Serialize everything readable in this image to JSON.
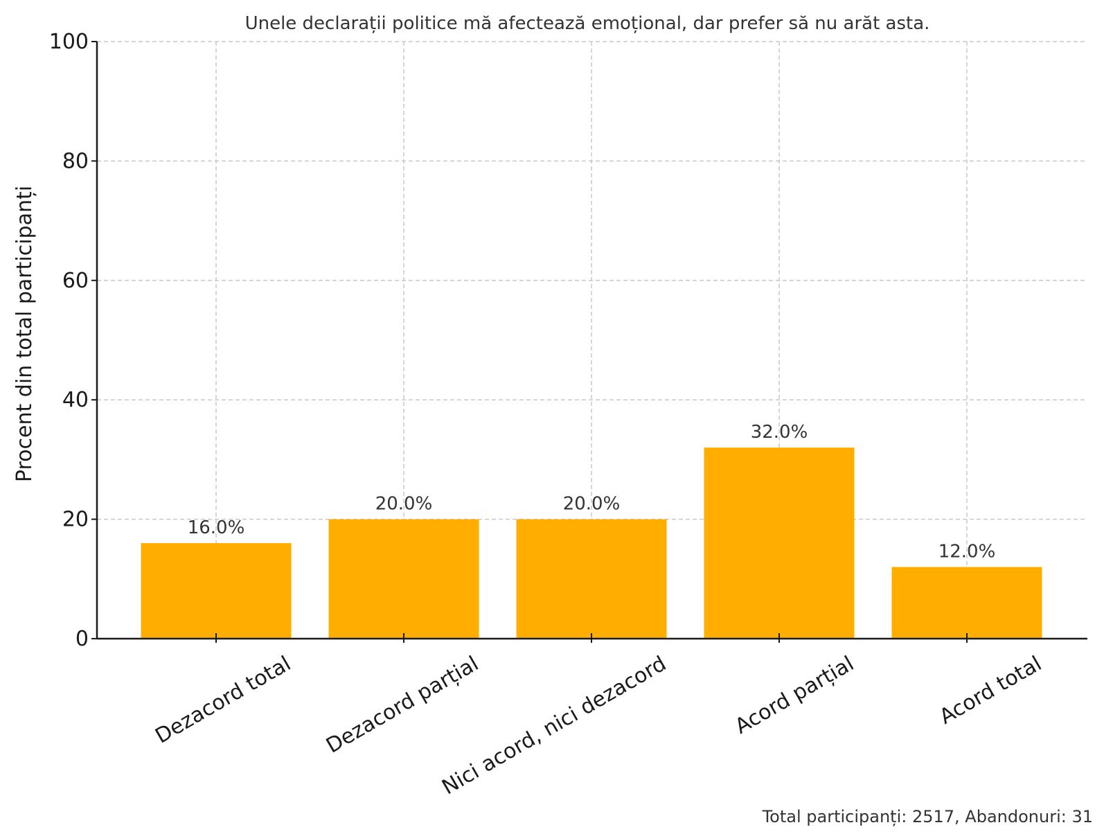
{
  "chart_data": {
    "type": "bar",
    "title": "Unele declarații politice mă afectează emoțional, dar prefer să nu arăt asta.",
    "xlabel": "",
    "ylabel": "Procent din total participanți",
    "categories": [
      "Dezacord total",
      "Dezacord parțial",
      "Nici acord, nici dezacord",
      "Acord parțial",
      "Acord total"
    ],
    "values": [
      16.0,
      20.0,
      20.0,
      32.0,
      12.0
    ],
    "data_labels": [
      "16.0%",
      "20.0%",
      "20.0%",
      "32.0%",
      "12.0%"
    ],
    "ylim": [
      0,
      100
    ],
    "yticks": [
      0,
      20,
      40,
      60,
      80,
      100
    ],
    "grid": true,
    "bar_color": "#FFAE00",
    "footer": "Total participanți: 2517, Abandonuri: 31"
  }
}
